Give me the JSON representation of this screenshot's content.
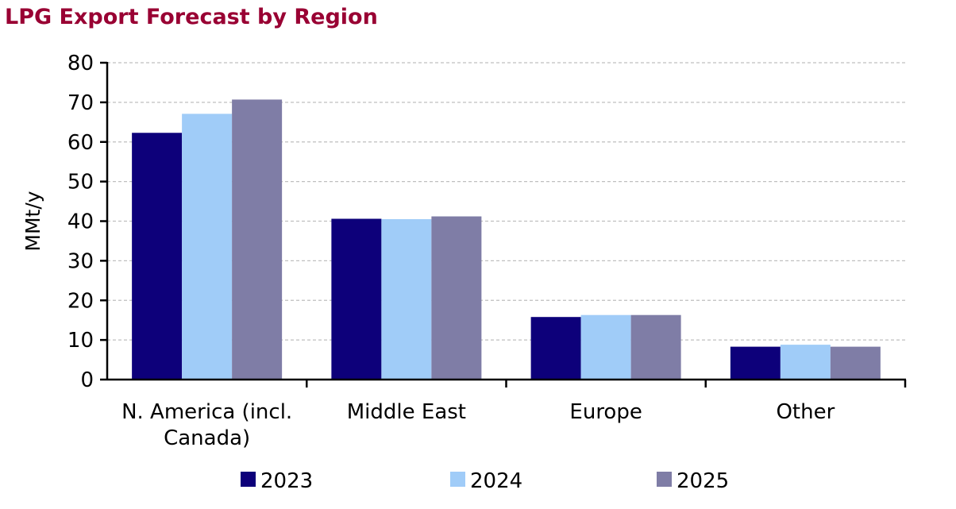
{
  "chart_data": {
    "type": "bar",
    "title": "LPG Export Forecast by Region",
    "ylabel": "MMt/y",
    "xlabel": "",
    "ylim": [
      0,
      80
    ],
    "yticks": [
      0,
      10,
      20,
      30,
      40,
      50,
      60,
      70,
      80
    ],
    "grid": true,
    "legend_position": "bottom",
    "categories": [
      "N. America (incl. Canada)",
      "Middle East",
      "Europe",
      "Other"
    ],
    "category_lines": [
      [
        "N. America (incl.",
        "Canada)"
      ],
      [
        "Middle East"
      ],
      [
        "Europe"
      ],
      [
        "Other"
      ]
    ],
    "series": [
      {
        "name": "2023",
        "color": "#0d007a",
        "values": [
          62.3,
          40.6,
          15.8,
          8.3
        ]
      },
      {
        "name": "2024",
        "color": "#a0ccf8",
        "values": [
          67.1,
          40.5,
          16.3,
          8.8
        ]
      },
      {
        "name": "2025",
        "color": "#7f7da6",
        "values": [
          70.7,
          41.2,
          16.3,
          8.3
        ]
      }
    ]
  }
}
